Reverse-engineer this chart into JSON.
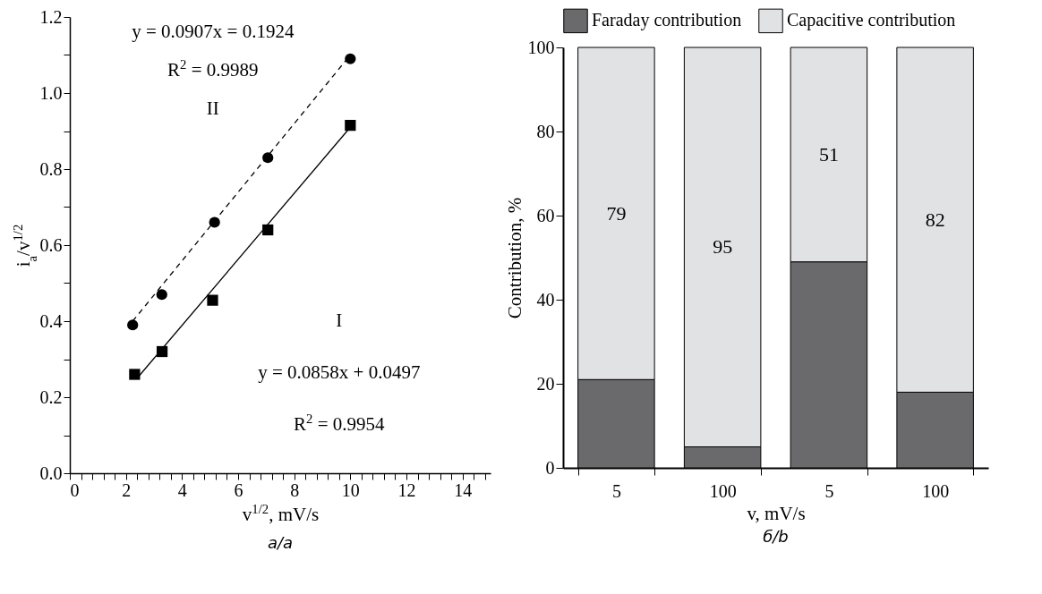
{
  "chart_data": [
    {
      "type": "scatter",
      "title": "a/a",
      "xlabel": "v$^{1/2}$, mV/s",
      "ylabel": "i$_{a}$/v$^{1/2}$",
      "xlim": [
        0,
        15
      ],
      "xticks": [
        0,
        {
          "value": 0.4,
          "label": null
        },
        {
          "value": 0.8,
          "label": null
        },
        {
          "value": 1.2,
          "label": null
        },
        {
          "value": 1.6,
          "label": null
        },
        2,
        {
          "value": 2.4,
          "label": null
        },
        {
          "value": 2.8,
          "label": null
        },
        {
          "value": 3.2,
          "label": null
        },
        {
          "value": 3.6,
          "label": null
        },
        4,
        {
          "value": 4.4,
          "label": null
        },
        {
          "value": 4.8,
          "label": null
        },
        {
          "value": 5.2,
          "label": null
        },
        {
          "value": 5.6,
          "label": null
        },
        6,
        {
          "value": 6.4,
          "label": null
        },
        {
          "value": 6.8,
          "label": null
        },
        {
          "value": 7.2,
          "label": null
        },
        {
          "value": 7.6,
          "label": null
        },
        8,
        {
          "value": 8.4,
          "label": null
        },
        {
          "value": 8.8,
          "label": null
        },
        {
          "value": 9.2,
          "label": null
        },
        {
          "value": 9.6,
          "label": null
        },
        10,
        {
          "value": 10.4,
          "label": null
        },
        {
          "value": 10.8,
          "label": null
        },
        {
          "value": 11.2,
          "label": null
        },
        {
          "value": 11.6,
          "label": null
        },
        12,
        {
          "value": 12.4,
          "label": null
        },
        {
          "value": 12.8,
          "label": null
        },
        {
          "value": 13.2,
          "label": null
        },
        {
          "value": 13.6,
          "label": null
        },
        14,
        {
          "value": 14.4,
          "label": null
        },
        {
          "value": 14.8,
          "label": null
        }
      ],
      "ylim": [
        0,
        1.2
      ],
      "yticks": [
        {
          "value": 0,
          "label": "0.0"
        },
        {
          "value": 0.1,
          "label": null
        },
        0.2,
        {
          "value": 0.3,
          "label": null
        },
        0.4,
        {
          "value": 0.5,
          "label": null
        },
        0.6,
        {
          "value": 0.7,
          "label": null
        },
        0.8,
        {
          "value": 0.9,
          "label": null
        },
        {
          "value": 1,
          "label": "1.0"
        },
        {
          "value": 1.1,
          "label": null
        },
        1.2
      ],
      "series": [
        {
          "type": "scatter",
          "marker": "circle",
          "color": "#000000",
          "x": [
            2.24,
            3.28,
            5.16,
            7.06,
            10
          ],
          "values": [
            0.39,
            0.47,
            0.66,
            0.83,
            1.09
          ]
        },
        {
          "type": "scatter",
          "marker": "square",
          "color": "#000000",
          "x": [
            2.31,
            3.29,
            5.09,
            7.06,
            10
          ],
          "values": [
            0.26,
            0.32,
            0.455,
            0.64,
            0.915
          ]
        },
        {
          "type": "line",
          "line_style": "dashed",
          "color": "#000000",
          "x": [
            2.24,
            10
          ],
          "values": [
            0.4,
            1.1
          ]
        },
        {
          "type": "line",
          "line_style": "solid",
          "color": "#000000",
          "x": [
            2.4,
            10
          ],
          "values": [
            0.25,
            0.91
          ]
        }
      ],
      "annotations": [
        "y = 0.0907x = 0.1924",
        "R$^{2}$ = 0.9989",
        "II",
        "I",
        "y = 0.0858x + 0.0497",
        "R$^{2}$ = 0.9954"
      ]
    },
    {
      "type": "bar",
      "title": "б/b",
      "xlabel": "v, mV/s",
      "ylabel": "Contribution, %",
      "stacked": true,
      "legend": "top",
      "categories": [
        "5",
        "100",
        "5",
        "100"
      ],
      "ylim": [
        0,
        100
      ],
      "yticks": [
        0,
        20,
        40,
        60,
        80,
        100
      ],
      "series": [
        {
          "name": "Faraday contribution",
          "color": "#6a6a6c",
          "values": [
            21,
            5,
            49,
            18
          ]
        },
        {
          "name": "Capacitive contribution",
          "color": "#e1e2e4",
          "values": [
            79,
            95,
            51,
            82
          ],
          "value_labels": [
            "79",
            "95",
            "51",
            "82"
          ]
        }
      ]
    }
  ]
}
